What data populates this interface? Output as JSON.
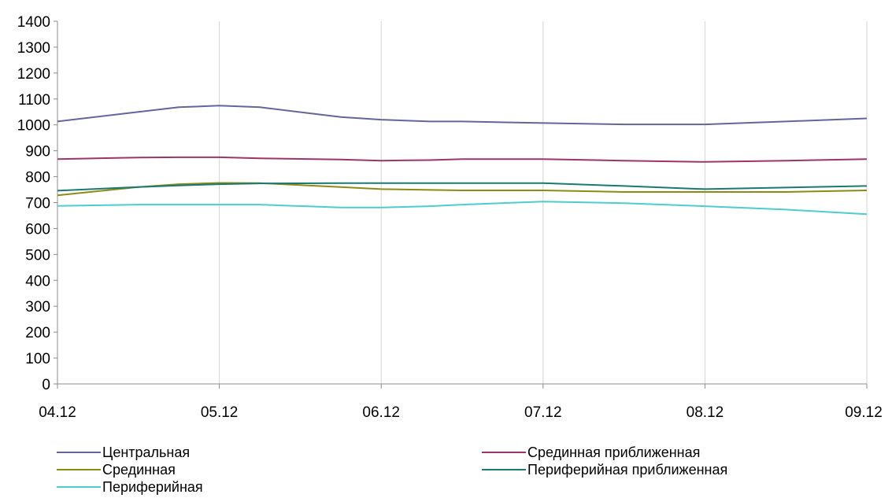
{
  "chart_data": {
    "type": "line",
    "categories": [
      "04.12",
      "05.12",
      "06.12",
      "07.12",
      "08.12",
      "09.12"
    ],
    "x": [
      0,
      0.5,
      0.75,
      1,
      1.25,
      1.75,
      2,
      2.3,
      2.5,
      3,
      3.5,
      4,
      4.5,
      5
    ],
    "ylim": [
      0,
      1400
    ],
    "yticks": [
      0,
      100,
      200,
      300,
      400,
      500,
      600,
      700,
      800,
      900,
      1000,
      1100,
      1200,
      1300,
      1400
    ],
    "grid": "vertical",
    "legend_position": "bottom",
    "series": [
      {
        "name": "Центральная",
        "color": "#6464a0",
        "values": [
          1013,
          1050,
          1068,
          1074,
          1068,
          1030,
          1020,
          1013,
          1013,
          1007,
          1002,
          1002,
          1013,
          1025
        ]
      },
      {
        "name": "Срединная приближенная",
        "color": "#a0346a",
        "values": [
          868,
          874,
          875,
          875,
          871,
          866,
          862,
          864,
          868,
          868,
          862,
          857,
          862,
          868
        ]
      },
      {
        "name": "Срединная",
        "color": "#8c8c14",
        "values": [
          728,
          760,
          771,
          776,
          775,
          760,
          752,
          749,
          747,
          747,
          741,
          741,
          741,
          747
        ]
      },
      {
        "name": "Периферийная приближенная",
        "color": "#1a7a73",
        "values": [
          746,
          760,
          766,
          771,
          774,
          775,
          775,
          775,
          775,
          775,
          764,
          752,
          758,
          764
        ]
      },
      {
        "name": "Периферийная",
        "color": "#4fcccc",
        "values": [
          687,
          692,
          692,
          692,
          692,
          681,
          681,
          686,
          692,
          704,
          698,
          686,
          673,
          655
        ]
      }
    ]
  }
}
